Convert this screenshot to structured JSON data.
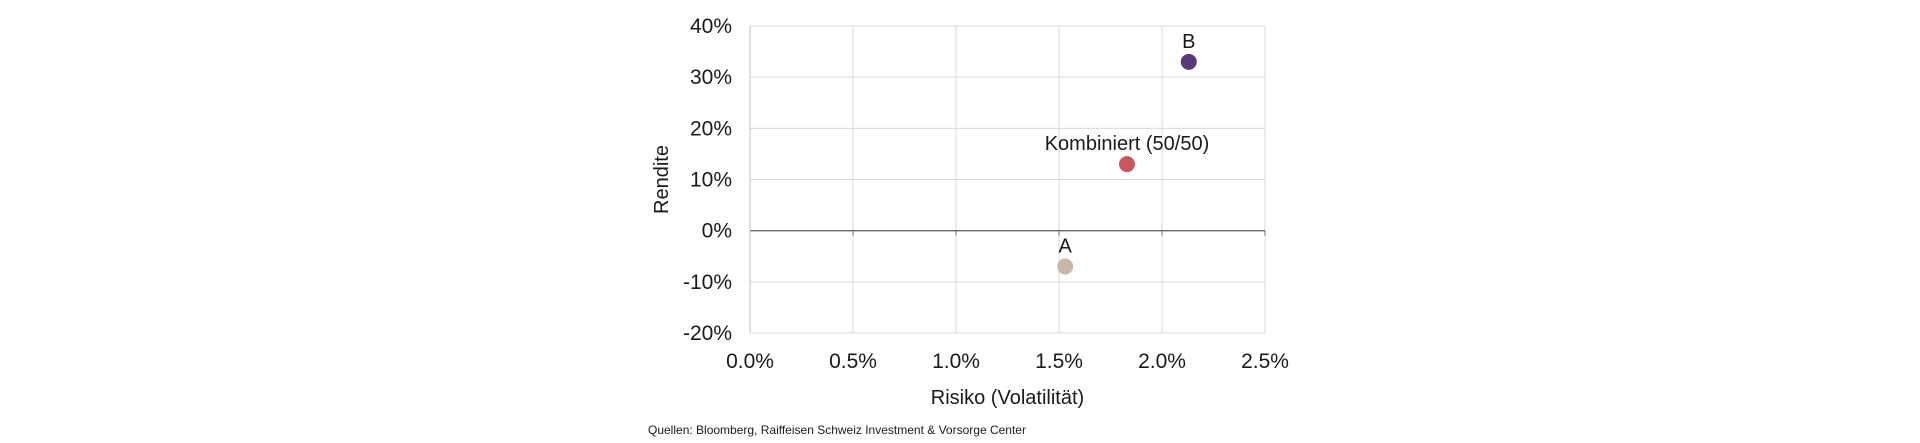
{
  "chart_data": {
    "type": "scatter",
    "title": "",
    "xlabel": "Risiko (Volatilität)",
    "ylabel": "Rendite",
    "xlim": [
      0.0,
      2.5
    ],
    "ylim": [
      -20,
      40
    ],
    "x_ticks": [
      "0.0%",
      "0.5%",
      "1.0%",
      "1.5%",
      "2.0%",
      "2.5%"
    ],
    "y_ticks": [
      "40%",
      "30%",
      "20%",
      "10%",
      "0%",
      "-10%",
      "-20%"
    ],
    "grid": true,
    "legend": "none",
    "points": [
      {
        "label": "A",
        "x": 1.53,
        "y": -7,
        "color": "#c9b8a8"
      },
      {
        "label": "Kombiniert (50/50)",
        "x": 1.83,
        "y": 13,
        "color": "#c8575d"
      },
      {
        "label": "B",
        "x": 2.13,
        "y": 33,
        "color": "#5a3a78"
      }
    ]
  },
  "source_note": "Quellen: Bloomberg, Raiffeisen Schweiz Investment & Vorsorge Center"
}
